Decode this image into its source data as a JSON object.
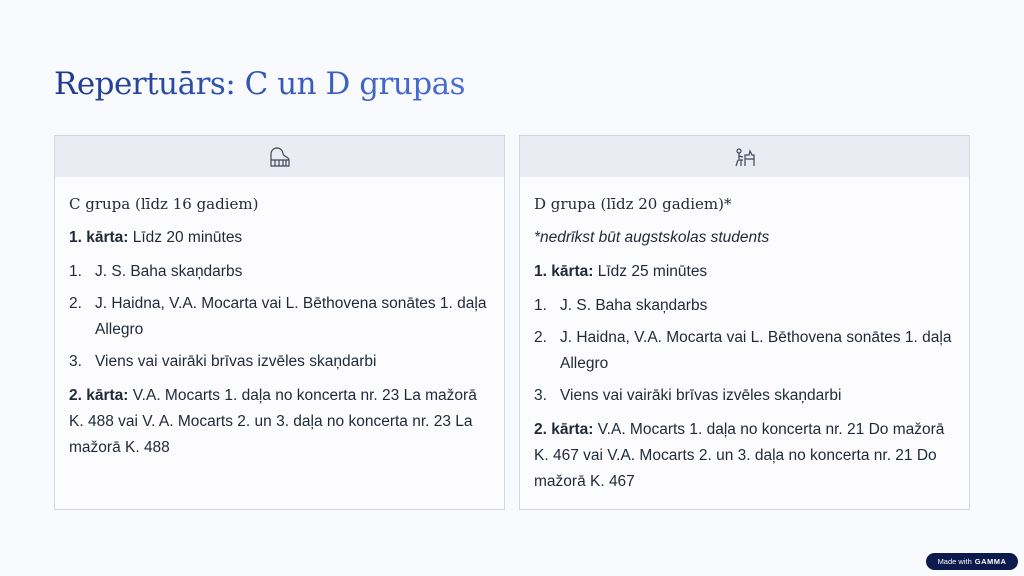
{
  "title": "Repertuārs: C un D grupas",
  "cards": [
    {
      "icon": "piano-icon",
      "heading": "C grupa (līdz 16 gadiem)",
      "note": "",
      "round1_label": "1. kārta:",
      "round1_text": " Līdz 20 minūtes",
      "items": [
        {
          "n": "1.",
          "t": "J. S. Baha skaņdarbs"
        },
        {
          "n": "2.",
          "t": "J. Haidna, V.A. Mocarta vai L. Bēthovena sonātes 1. daļa Allegro"
        },
        {
          "n": "3.",
          "t": "Viens vai vairāki brīvas izvēles skaņdarbi"
        }
      ],
      "round2_label": "2. kārta:",
      "round2_text": " V.A. Mocarts 1. daļa no koncerta nr. 23 La mažorā K. 488 vai V. A. Mocarts 2. un 3. daļa no koncerta nr. 23 La mažorā K. 488"
    },
    {
      "icon": "pianist-icon",
      "heading": "D grupa (līdz 20 gadiem)*",
      "note": "*nedrīkst būt augstskolas students",
      "round1_label": "1. kārta:",
      "round1_text": " Līdz 25 minūtes",
      "items": [
        {
          "n": "1.",
          "t": "J. S. Baha skaņdarbs"
        },
        {
          "n": "2.",
          "t": "J. Haidna, V.A. Mocarta vai L. Bēthovena sonātes 1. daļa Allegro"
        },
        {
          "n": "3.",
          "t": "Viens vai vairāki brīvas izvēles skaņdarbi"
        }
      ],
      "round2_label": "2. kārta:",
      "round2_text": " V.A. Mocarts 1. daļa no koncerta nr. 21 Do mažorā K. 467 vai V.A. Mocarts 2. un 3. daļa no koncerta nr. 21 Do mažorā K. 467"
    }
  ],
  "badge": {
    "prefix": "Made with",
    "brand": "GAMMA"
  }
}
